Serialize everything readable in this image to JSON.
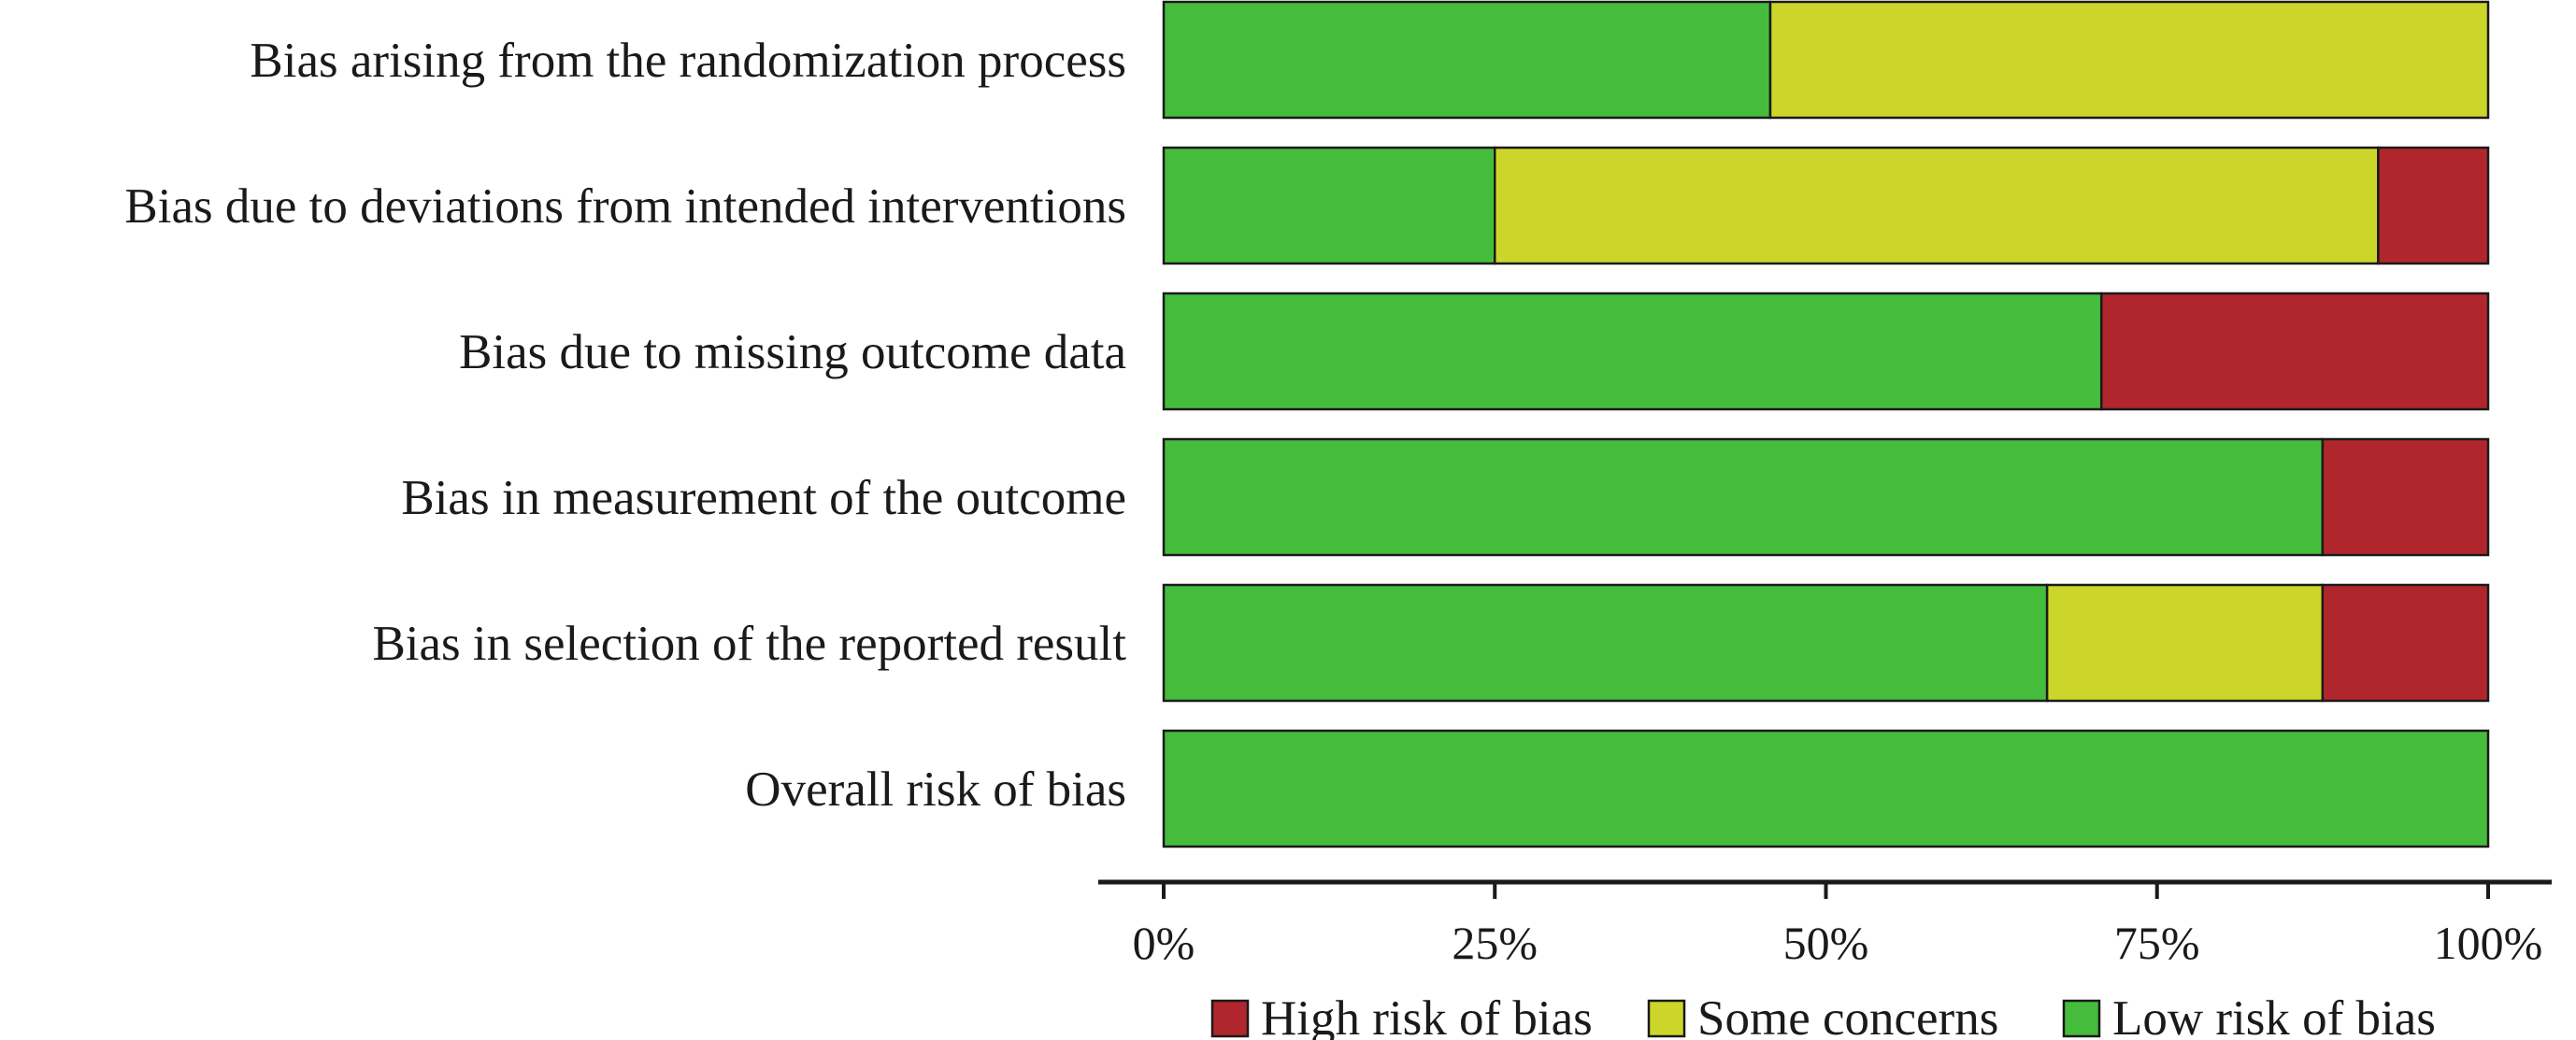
{
  "chart_data": {
    "type": "bar",
    "orientation": "horizontal",
    "stacked": true,
    "categories": [
      "Bias arising from the randomization process",
      "Bias due to deviations from intended interventions",
      "Bias due to missing outcome data",
      "Bias in measurement of the outcome",
      "Bias in selection of the reported result",
      "Overall risk of bias"
    ],
    "series": [
      {
        "name": "Low risk of bias",
        "color": "#45BC3C",
        "values": [
          45.8,
          25.0,
          70.8,
          87.5,
          66.7,
          100
        ]
      },
      {
        "name": "Some concerns",
        "color": "#CCD62A",
        "values": [
          54.2,
          66.7,
          0,
          0,
          20.8,
          0
        ]
      },
      {
        "name": "High risk of bias",
        "color": "#B1262D",
        "values": [
          0,
          8.3,
          29.2,
          12.5,
          12.5,
          0
        ]
      }
    ],
    "xlim": [
      0,
      100
    ],
    "x_ticks": [
      "0%",
      "25%",
      "50%",
      "75%",
      "100%"
    ],
    "legend": [
      {
        "name": "High risk of bias",
        "color": "#B1262D"
      },
      {
        "name": "Some concerns",
        "color": "#CCD62A"
      },
      {
        "name": "Low risk of bias",
        "color": "#45BC3C"
      }
    ],
    "legend_position": "bottom",
    "grid": false
  }
}
